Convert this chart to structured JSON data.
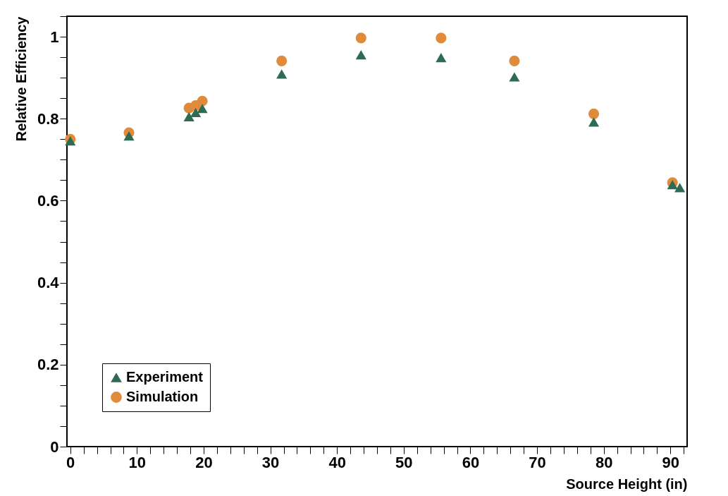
{
  "chart_data": {
    "type": "scatter",
    "xlabel": "Source Height (in)",
    "ylabel": "Relative Efficiency",
    "xlim": [
      -0.5,
      92.5
    ],
    "ylim": [
      0,
      1.05
    ],
    "xticks": [
      0,
      {
        "value": 2,
        "label": null
      },
      {
        "value": 4,
        "label": null
      },
      {
        "value": 6,
        "label": null
      },
      {
        "value": 8,
        "label": null
      },
      10,
      {
        "value": 12,
        "label": null
      },
      {
        "value": 14,
        "label": null
      },
      {
        "value": 16,
        "label": null
      },
      {
        "value": 18,
        "label": null
      },
      20,
      {
        "value": 22,
        "label": null
      },
      {
        "value": 24,
        "label": null
      },
      {
        "value": 26,
        "label": null
      },
      {
        "value": 28,
        "label": null
      },
      30,
      {
        "value": 32,
        "label": null
      },
      {
        "value": 34,
        "label": null
      },
      {
        "value": 36,
        "label": null
      },
      {
        "value": 38,
        "label": null
      },
      40,
      {
        "value": 42,
        "label": null
      },
      {
        "value": 44,
        "label": null
      },
      {
        "value": 46,
        "label": null
      },
      {
        "value": 48,
        "label": null
      },
      50,
      {
        "value": 52,
        "label": null
      },
      {
        "value": 54,
        "label": null
      },
      {
        "value": 56,
        "label": null
      },
      {
        "value": 58,
        "label": null
      },
      60,
      {
        "value": 62,
        "label": null
      },
      {
        "value": 64,
        "label": null
      },
      {
        "value": 66,
        "label": null
      },
      {
        "value": 68,
        "label": null
      },
      70,
      {
        "value": 72,
        "label": null
      },
      {
        "value": 74,
        "label": null
      },
      {
        "value": 76,
        "label": null
      },
      {
        "value": 78,
        "label": null
      },
      80,
      {
        "value": 82,
        "label": null
      },
      {
        "value": 84,
        "label": null
      },
      {
        "value": 86,
        "label": null
      },
      {
        "value": 88,
        "label": null
      },
      90,
      {
        "value": 92,
        "label": null
      }
    ],
    "yticks": [
      0,
      {
        "value": 0.05,
        "label": null
      },
      {
        "value": 0.1,
        "label": null
      },
      {
        "value": 0.15,
        "label": null
      },
      0.2,
      {
        "value": 0.25,
        "label": null
      },
      {
        "value": 0.3,
        "label": null
      },
      {
        "value": 0.35,
        "label": null
      },
      0.4,
      {
        "value": 0.45,
        "label": null
      },
      {
        "value": 0.5,
        "label": null
      },
      {
        "value": 0.55,
        "label": null
      },
      0.6,
      {
        "value": 0.65,
        "label": null
      },
      {
        "value": 0.7,
        "label": null
      },
      {
        "value": 0.75,
        "label": null
      },
      0.8,
      {
        "value": 0.85,
        "label": null
      },
      {
        "value": 0.9,
        "label": null
      },
      {
        "value": 0.95,
        "label": null
      },
      1,
      {
        "value": 1.05,
        "label": null
      }
    ],
    "grid": false,
    "legend": "bottom left",
    "series": [
      {
        "name": "Experiment",
        "color": "#2e6b55",
        "marker": "triangle",
        "x": [
          0,
          8.8,
          17.8,
          18.8,
          19.8,
          31.7,
          43.6,
          55.6,
          66.6,
          78.5,
          90.3,
          91.4
        ],
        "values": [
          0.746,
          0.758,
          0.805,
          0.815,
          0.825,
          0.909,
          0.956,
          0.949,
          0.902,
          0.792,
          0.639,
          0.632
        ]
      },
      {
        "name": "Simulation",
        "color": "#e08a3c",
        "marker": "circle",
        "x": [
          0,
          8.8,
          17.8,
          18.8,
          19.8,
          31.7,
          43.6,
          55.6,
          66.6,
          78.5,
          90.3
        ],
        "values": [
          0.75,
          0.766,
          0.826,
          0.832,
          0.843,
          0.941,
          0.997,
          0.997,
          0.941,
          0.812,
          0.644
        ]
      }
    ]
  }
}
